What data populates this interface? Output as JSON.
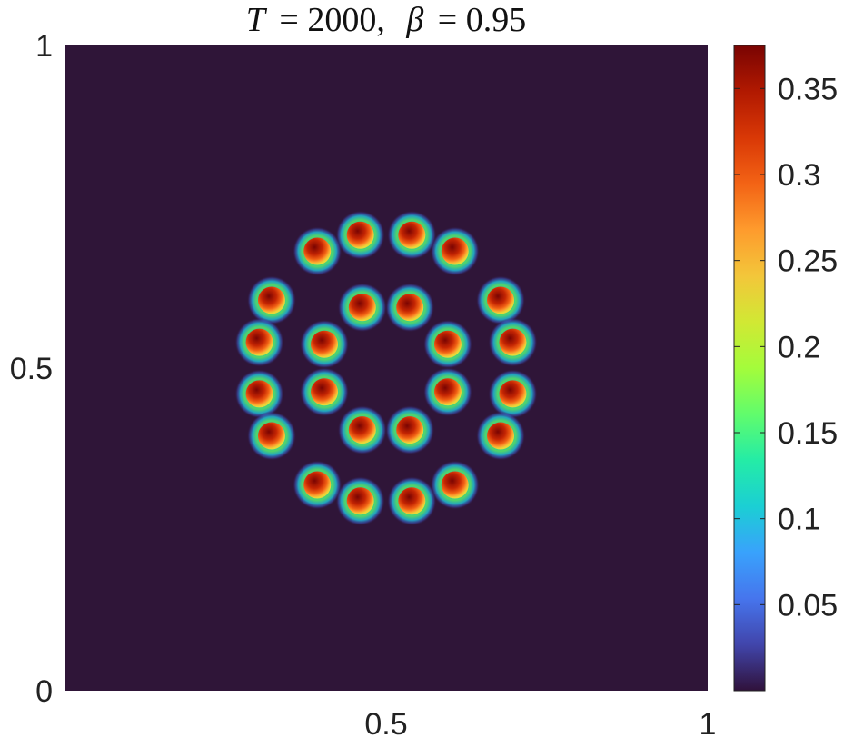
{
  "chart_data": {
    "type": "heatmap",
    "title": {
      "t_symbol": "T",
      "t_value": "= 2000,",
      "beta_symbol": "β",
      "beta_value": "= 0.95"
    },
    "x_ticks": [
      {
        "value": 0.5,
        "label": "0.5"
      },
      {
        "value": 1,
        "label": "1"
      }
    ],
    "y_ticks": [
      {
        "value": 0,
        "label": "0"
      },
      {
        "value": 0.5,
        "label": "0.5"
      },
      {
        "value": 1,
        "label": "1"
      }
    ],
    "xlim": [
      0,
      1
    ],
    "ylim": [
      0,
      1
    ],
    "colorbar": {
      "range": [
        0,
        0.375
      ],
      "ticks": [
        {
          "value": 0.05,
          "label": "0.05"
        },
        {
          "value": 0.1,
          "label": "0.1"
        },
        {
          "value": 0.15,
          "label": "0.15"
        },
        {
          "value": 0.2,
          "label": "0.2"
        },
        {
          "value": 0.25,
          "label": "0.25"
        },
        {
          "value": 0.3,
          "label": "0.3"
        },
        {
          "value": 0.35,
          "label": "0.35"
        }
      ],
      "colormap": [
        "#30123b",
        "#4145ab",
        "#4675ed",
        "#39a2fc",
        "#1bcfd4",
        "#24eca6",
        "#61fc6c",
        "#a4fc3b",
        "#d1e834",
        "#f3c63a",
        "#fe9b2d",
        "#f36315",
        "#d93806",
        "#b11901",
        "#7a0402"
      ]
    },
    "background_color": "#2f1538",
    "blobs": [
      {
        "x": 0.46,
        "y": 0.706,
        "peak": 0.36
      },
      {
        "x": 0.393,
        "y": 0.681,
        "peak": 0.37
      },
      {
        "x": 0.54,
        "y": 0.706,
        "peak": 0.36
      },
      {
        "x": 0.607,
        "y": 0.681,
        "peak": 0.37
      },
      {
        "x": 0.322,
        "y": 0.605,
        "peak": 0.37
      },
      {
        "x": 0.303,
        "y": 0.54,
        "peak": 0.36
      },
      {
        "x": 0.678,
        "y": 0.605,
        "peak": 0.37
      },
      {
        "x": 0.697,
        "y": 0.54,
        "peak": 0.36
      },
      {
        "x": 0.303,
        "y": 0.46,
        "peak": 0.36
      },
      {
        "x": 0.322,
        "y": 0.395,
        "peak": 0.37
      },
      {
        "x": 0.697,
        "y": 0.46,
        "peak": 0.36
      },
      {
        "x": 0.678,
        "y": 0.395,
        "peak": 0.37
      },
      {
        "x": 0.393,
        "y": 0.319,
        "peak": 0.37
      },
      {
        "x": 0.46,
        "y": 0.294,
        "peak": 0.36
      },
      {
        "x": 0.607,
        "y": 0.319,
        "peak": 0.37
      },
      {
        "x": 0.54,
        "y": 0.294,
        "peak": 0.36
      },
      {
        "x": 0.463,
        "y": 0.594,
        "peak": 0.36
      },
      {
        "x": 0.537,
        "y": 0.594,
        "peak": 0.36
      },
      {
        "x": 0.404,
        "y": 0.537,
        "peak": 0.36
      },
      {
        "x": 0.596,
        "y": 0.537,
        "peak": 0.36
      },
      {
        "x": 0.404,
        "y": 0.463,
        "peak": 0.36
      },
      {
        "x": 0.596,
        "y": 0.463,
        "peak": 0.36
      },
      {
        "x": 0.463,
        "y": 0.404,
        "peak": 0.36
      },
      {
        "x": 0.537,
        "y": 0.404,
        "peak": 0.36
      }
    ]
  }
}
